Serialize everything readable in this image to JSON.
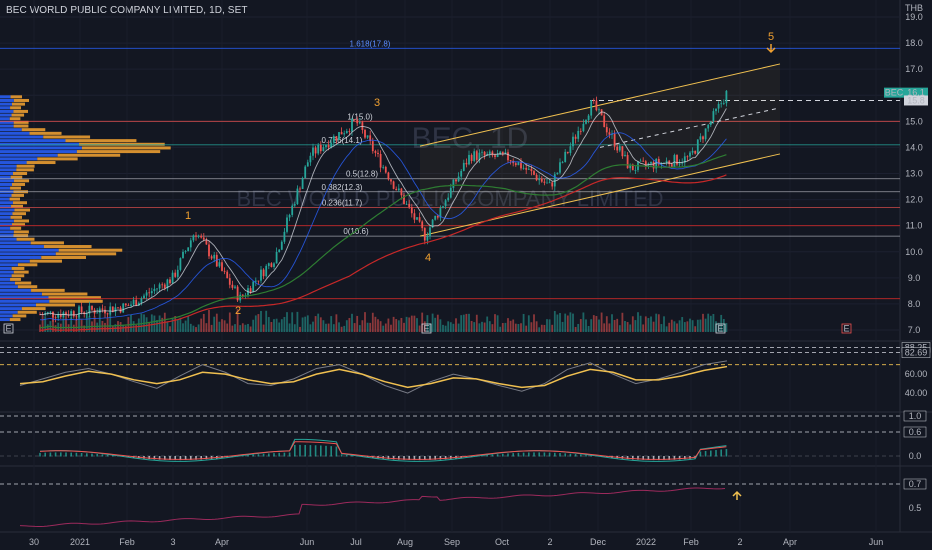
{
  "header": {
    "title": "BEC WORLD PUBLIC COMPANY LIMITED, 1D, SET"
  },
  "currency": "THB",
  "watermark": {
    "symbol": "BEC, 1D",
    "name": "BEC WORLD PUBLIC COMPANY LIMITED"
  },
  "colors": {
    "background": "#131722",
    "up": "#26a69a",
    "down": "#ef5350",
    "ma_white": "#d1d4dc",
    "ma_green": "#2e7d32",
    "ma_red": "#c62828",
    "channel": "#f0c050",
    "volume_profile_blue": "#2962ff",
    "volume_profile_orange": "#f7a531"
  },
  "chart_data": [
    {
      "type": "candlestick",
      "panel": "price",
      "symbol": "BEC",
      "timeframe": "1D",
      "x_ticks": [
        "30",
        "2021",
        "Feb",
        "3",
        "Apr",
        "Jun",
        "Jul",
        "Aug",
        "Sep",
        "Oct",
        "2",
        "Dec",
        "2022",
        "Feb",
        "2",
        "Apr",
        "Jun"
      ],
      "y_ticks": [
        "19.0",
        "18.0",
        "17.0",
        "16.0",
        "15.0",
        "14.0",
        "13.0",
        "12.0",
        "11.0",
        "10.0",
        "9.0",
        "8.0",
        "7.0"
      ],
      "ylim": [
        7.0,
        19.0
      ],
      "last_price_label": {
        "symbol": "BEC",
        "value": "16.1"
      },
      "level_label": "15.8",
      "price_path": [
        [
          "Dec 2020",
          7.6
        ],
        [
          "Jan 2021",
          7.7
        ],
        [
          "Feb 2021",
          7.9
        ],
        [
          "Mar 2021",
          9.0
        ],
        [
          "late Mar 2021",
          10.8
        ],
        [
          "Apr 2021",
          8.2
        ],
        [
          "May 2021",
          9.8
        ],
        [
          "Jun 2021",
          13.7
        ],
        [
          "Jul 2021",
          15.0
        ],
        [
          "Aug 2021",
          10.6
        ],
        [
          "Sep 2021",
          13.7
        ],
        [
          "Oct 2021",
          13.6
        ],
        [
          "Nov 2021",
          12.5
        ],
        [
          "Dec 2021",
          15.7
        ],
        [
          "Jan 2022",
          13.2
        ],
        [
          "Feb 2022",
          13.6
        ],
        [
          "Mar 2022",
          16.1
        ]
      ],
      "fibonacci": [
        {
          "label": "1.618(17.8)",
          "value": 17.8
        },
        {
          "label": "1(15.0)",
          "value": 15.0
        },
        {
          "label": "0.786(14.1)",
          "value": 14.1
        },
        {
          "label": "0.5(12.8)",
          "value": 12.8
        },
        {
          "label": "0.382(12.3)",
          "value": 12.3
        },
        {
          "label": "0.236(11.7)",
          "value": 11.7
        },
        {
          "label": "0(10.6)",
          "value": 10.6
        }
      ],
      "wave_labels": [
        "1",
        "2",
        "3",
        "4",
        "5"
      ],
      "events": [
        "E",
        "E",
        "E",
        "E"
      ]
    },
    {
      "type": "line",
      "panel": "oscillator",
      "y_ticks": [
        "88.25",
        "82.69",
        "60.00",
        "40.00"
      ],
      "levels": [
        88.25,
        82.69,
        70
      ],
      "series": [
        {
          "values": [
            48,
            55,
            62,
            66,
            60,
            52,
            45,
            58,
            70,
            62,
            50,
            48,
            55,
            66,
            70,
            60,
            48,
            40,
            52,
            60,
            55,
            48,
            42,
            50,
            65,
            72,
            60,
            50,
            55,
            62,
            70,
            74
          ]
        },
        {
          "values": [
            50,
            52,
            58,
            63,
            60,
            54,
            50,
            54,
            62,
            60,
            54,
            50,
            52,
            60,
            65,
            60,
            52,
            46,
            50,
            56,
            55,
            50,
            46,
            48,
            58,
            65,
            62,
            54,
            54,
            58,
            64,
            68
          ]
        }
      ]
    },
    {
      "type": "bar",
      "panel": "macd",
      "y_ticks": [
        "1.0",
        "0.6",
        "0.0"
      ],
      "levels": [
        1.0,
        0.6,
        0.0
      ]
    },
    {
      "type": "line",
      "panel": "ratio",
      "y_ticks": [
        "0.7",
        "0.5"
      ],
      "levels": [
        0.7
      ]
    }
  ]
}
